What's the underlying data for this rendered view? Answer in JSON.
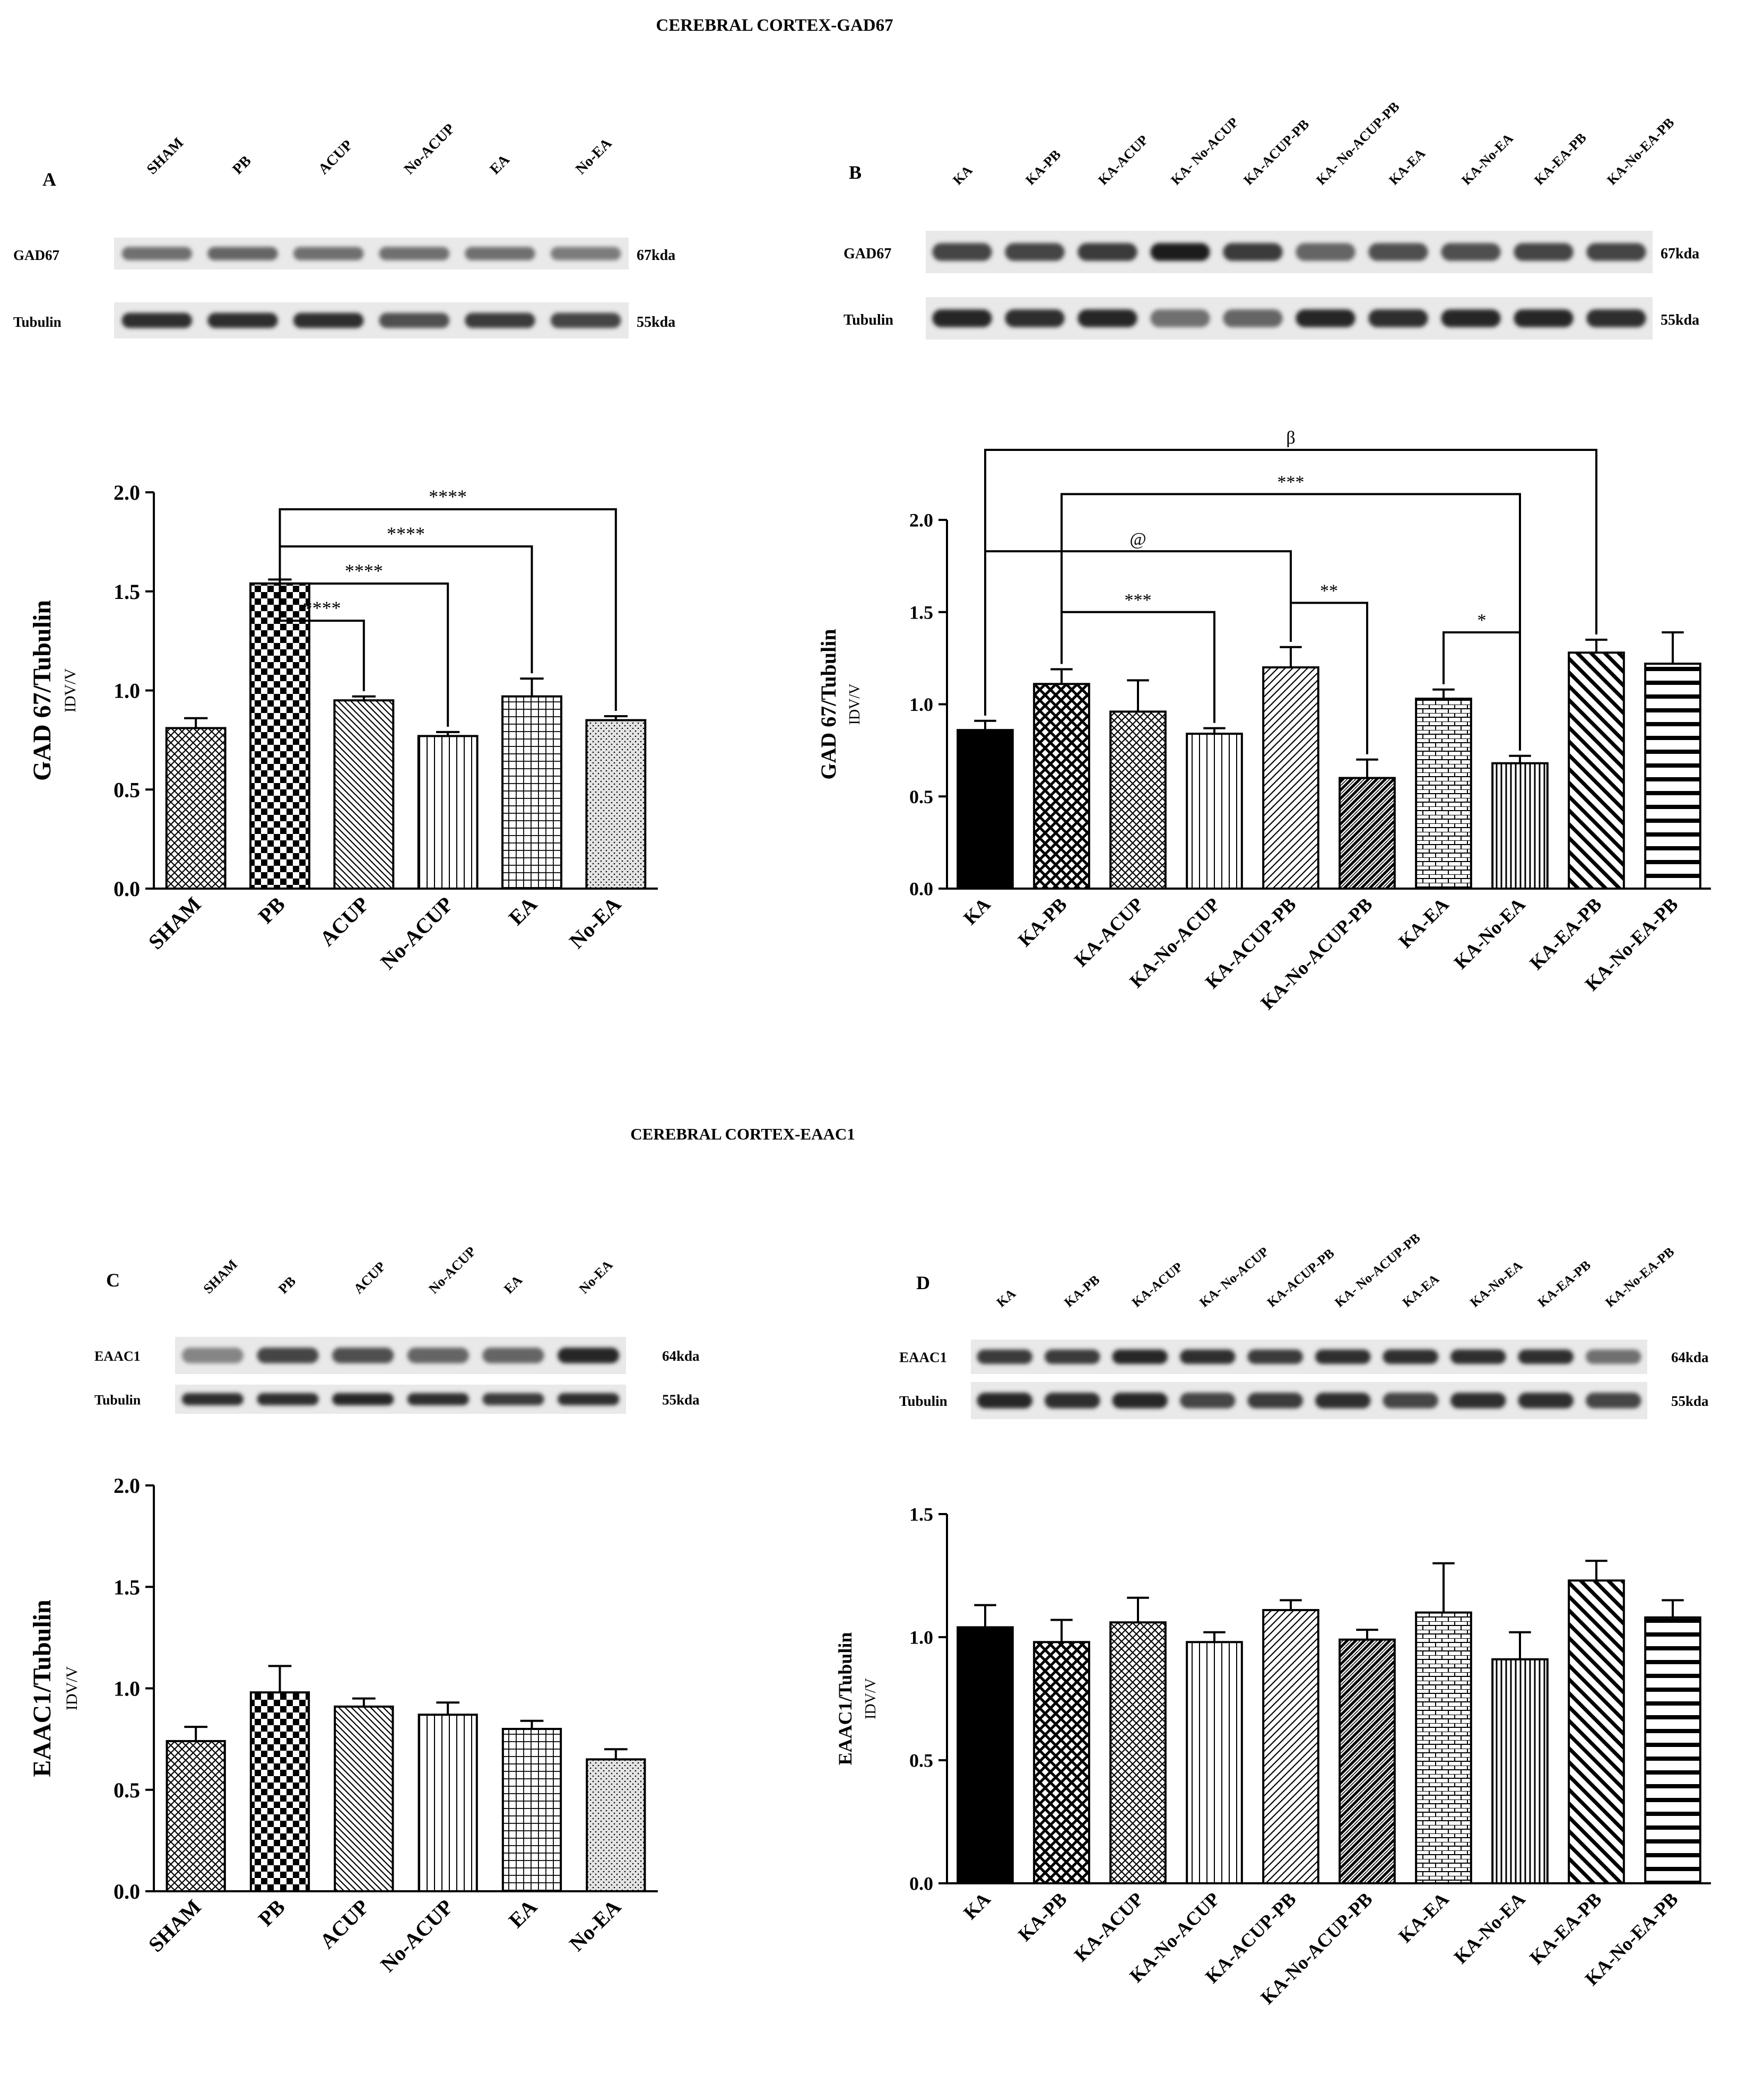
{
  "sections": [
    {
      "title": "CEREBRAL CORTEX-GAD67"
    },
    {
      "title": "CEREBRAL CORTEX-EAAC1"
    }
  ],
  "colors": {
    "ink": "#000000",
    "blot_light": "#e8e8e8",
    "blot_dark": "#1a1a1a"
  },
  "blots": [
    {
      "panel": "A",
      "lanes": [
        "SHAM",
        "PB",
        "ACUP",
        "No-ACUP",
        "EA",
        "No-EA"
      ],
      "rows": [
        {
          "label": "GAD67",
          "size": "67kda",
          "intensity": [
            0.55,
            0.6,
            0.55,
            0.55,
            0.55,
            0.5
          ]
        },
        {
          "label": "Tubulin",
          "size": "55kda",
          "intensity": [
            0.85,
            0.85,
            0.85,
            0.7,
            0.8,
            0.75
          ]
        }
      ]
    },
    {
      "panel": "B",
      "lanes": [
        "KA",
        "KA-PB",
        "KA-ACUP",
        "KA- No-ACUP",
        "KA-ACUP-PB",
        "KA- No-ACUP-PB",
        "KA-EA",
        "KA-No-EA",
        "KA-EA-PB",
        "KA-No-EA-PB"
      ],
      "rows": [
        {
          "label": "GAD67",
          "size": "67kda",
          "intensity": [
            0.75,
            0.75,
            0.8,
            0.95,
            0.8,
            0.6,
            0.7,
            0.7,
            0.75,
            0.75
          ]
        },
        {
          "label": "Tubulin",
          "size": "55kda",
          "intensity": [
            0.9,
            0.85,
            0.9,
            0.55,
            0.6,
            0.9,
            0.85,
            0.9,
            0.9,
            0.85
          ]
        }
      ]
    },
    {
      "panel": "C",
      "lanes": [
        "SHAM",
        "PB",
        "ACUP",
        "No-ACUP",
        "EA",
        "No-EA"
      ],
      "rows": [
        {
          "label": "EAAC1",
          "size": "64kda",
          "intensity": [
            0.45,
            0.75,
            0.7,
            0.6,
            0.6,
            0.9
          ]
        },
        {
          "label": "Tubulin",
          "size": "55kda",
          "intensity": [
            0.85,
            0.85,
            0.9,
            0.85,
            0.8,
            0.85
          ]
        }
      ]
    },
    {
      "panel": "D",
      "lanes": [
        "KA",
        "KA-PB",
        "KA-ACUP",
        "KA- No-ACUP",
        "KA-ACUP-PB",
        "KA- No-ACUP-PB",
        "KA-EA",
        "KA-No-EA",
        "KA-EA-PB",
        "KA-No-EA-PB"
      ],
      "rows": [
        {
          "label": "EAAC1",
          "size": "64kda",
          "intensity": [
            0.8,
            0.8,
            0.9,
            0.85,
            0.8,
            0.85,
            0.85,
            0.85,
            0.85,
            0.55
          ]
        },
        {
          "label": "Tubulin",
          "size": "55kda",
          "intensity": [
            0.9,
            0.85,
            0.9,
            0.75,
            0.8,
            0.85,
            0.75,
            0.85,
            0.85,
            0.75
          ]
        }
      ]
    }
  ],
  "chart_data": [
    {
      "panel": "A",
      "type": "bar",
      "title": "",
      "ylabel": "GAD 67/Tubulin",
      "ylabel_unit": "IDV/V",
      "categories": [
        "SHAM",
        "PB",
        "ACUP",
        "No-ACUP",
        "EA",
        "No-EA"
      ],
      "values": [
        0.81,
        1.54,
        0.95,
        0.77,
        0.97,
        0.85
      ],
      "errors": [
        0.05,
        0.02,
        0.02,
        0.02,
        0.09,
        0.02
      ],
      "patterns": [
        "crosshatch",
        "checker",
        "diag-left",
        "vertical",
        "grid",
        "dots"
      ],
      "ylim": [
        0,
        2.0
      ],
      "yticks": [
        "0.0",
        "0.5",
        "1.0",
        "1.5",
        "2.0"
      ],
      "significance": [
        {
          "from": 1,
          "to": 2,
          "label": "****"
        },
        {
          "from": 1,
          "to": 3,
          "label": "****"
        },
        {
          "from": 1,
          "to": 4,
          "label": "****"
        },
        {
          "from": 1,
          "to": 5,
          "label": "****"
        }
      ]
    },
    {
      "panel": "B",
      "type": "bar",
      "title": "",
      "ylabel": "GAD 67/Tubulin",
      "ylabel_unit": "IDV/V",
      "categories": [
        "KA",
        "KA-PB",
        "KA-ACUP",
        "KA-No-ACUP",
        "KA-ACUP-PB",
        "KA-No-ACUP-PB",
        "KA-EA",
        "KA-No-EA",
        "KA-EA-PB",
        "KA-No-EA-PB"
      ],
      "values": [
        0.86,
        1.11,
        0.96,
        0.84,
        1.2,
        0.6,
        1.03,
        0.68,
        1.28,
        1.22
      ],
      "errors": [
        0.05,
        0.08,
        0.17,
        0.03,
        0.11,
        0.1,
        0.05,
        0.04,
        0.07,
        0.17
      ],
      "patterns": [
        "solid",
        "crosshatch-bold",
        "crosshatch",
        "vertical",
        "diag-right",
        "zigzag",
        "brick",
        "vertical-dense",
        "diag-left-bold",
        "horizontal"
      ],
      "ylim": [
        0,
        2.0
      ],
      "yticks": [
        "0.0",
        "0.5",
        "1.0",
        "1.5",
        "2.0"
      ],
      "significance": [
        {
          "from": 0,
          "to": 8,
          "label": "β"
        },
        {
          "from": 1,
          "to": 7,
          "label": "***"
        },
        {
          "from": 0,
          "to": 4,
          "label": "@"
        },
        {
          "from": 1,
          "to": 3,
          "label": "***"
        },
        {
          "from": 4,
          "to": 5,
          "label": "**"
        },
        {
          "from": 6,
          "to": 7,
          "label": "*"
        }
      ]
    },
    {
      "panel": "C",
      "type": "bar",
      "title": "",
      "ylabel": "EAAC1/Tubulin",
      "ylabel_unit": "IDV/V",
      "categories": [
        "SHAM",
        "PB",
        "ACUP",
        "No-ACUP",
        "EA",
        "No-EA"
      ],
      "values": [
        0.74,
        0.98,
        0.91,
        0.87,
        0.8,
        0.65
      ],
      "errors": [
        0.07,
        0.13,
        0.04,
        0.06,
        0.04,
        0.05
      ],
      "patterns": [
        "crosshatch",
        "checker",
        "diag-left",
        "vertical",
        "grid",
        "dots"
      ],
      "ylim": [
        0,
        2.0
      ],
      "yticks": [
        "0.0",
        "0.5",
        "1.0",
        "1.5",
        "2.0"
      ],
      "significance": []
    },
    {
      "panel": "D",
      "type": "bar",
      "title": "",
      "ylabel": "EAAC1/Tubulin",
      "ylabel_unit": "IDV/V",
      "categories": [
        "KA",
        "KA-PB",
        "KA-ACUP",
        "KA-No-ACUP",
        "KA-ACUP-PB",
        "KA-No-ACUP-PB",
        "KA-EA",
        "KA-No-EA",
        "KA-EA-PB",
        "KA-No-EA-PB"
      ],
      "values": [
        1.04,
        0.98,
        1.06,
        0.98,
        1.11,
        0.99,
        1.1,
        0.91,
        1.23,
        1.08
      ],
      "errors": [
        0.09,
        0.09,
        0.1,
        0.04,
        0.04,
        0.04,
        0.2,
        0.11,
        0.08,
        0.07
      ],
      "patterns": [
        "solid",
        "crosshatch-bold",
        "crosshatch",
        "vertical",
        "diag-right",
        "zigzag",
        "brick",
        "vertical-dense",
        "diag-left-bold",
        "horizontal"
      ],
      "ylim": [
        0,
        1.5
      ],
      "yticks": [
        "0.0",
        "0.5",
        "1.0",
        "1.5"
      ],
      "significance": []
    }
  ]
}
